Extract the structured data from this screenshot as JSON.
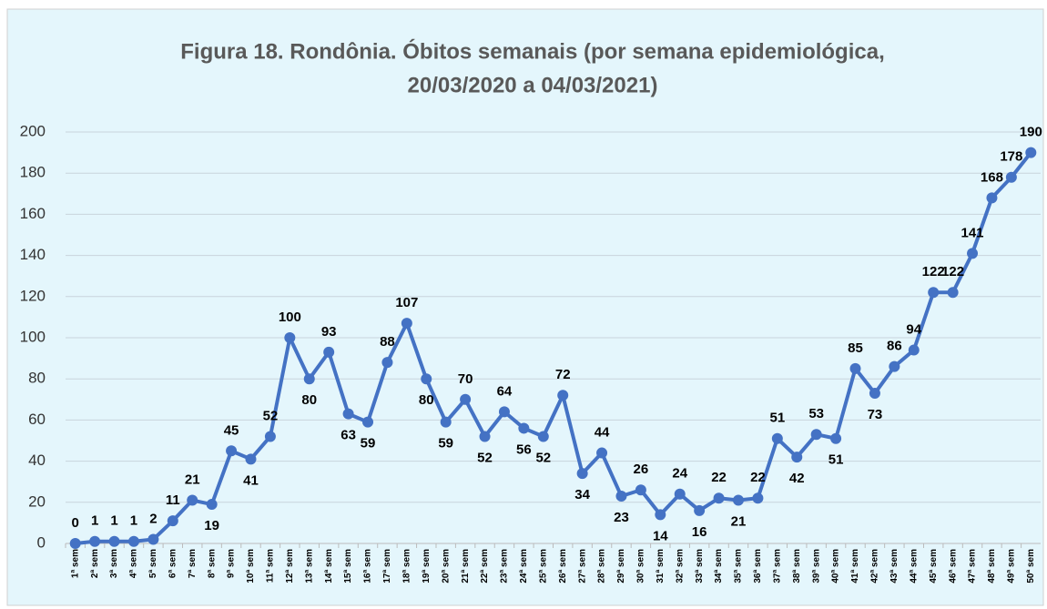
{
  "chart_data": {
    "type": "line",
    "title": [
      "Figura 18.  Rondônia. Óbitos semanais (por semana epidemiológica,",
      "20/03/2020 a 04/03/2021)"
    ],
    "categories": [
      "1ª sem",
      "2ª sem",
      "3ª sem",
      "4ª sem",
      "5ª sem",
      "6ª sem",
      "7ª sem",
      "8ª sem",
      "9ª sem",
      "10ª sem",
      "11ª sem",
      "12ª sem",
      "13ª sem",
      "14ª sem",
      "15ª sem",
      "16ª sem",
      "17ª sem",
      "18ª sem",
      "19ª sem",
      "20ª sem",
      "21ª sem",
      "22ª sem",
      "23ª sem",
      "24ª sem",
      "25ª sem",
      "26ª sem",
      "27ª sem",
      "28ª sem",
      "29ª sem",
      "30ª sem",
      "31ª sem",
      "32ª sem",
      "33ª sem",
      "34ª sem",
      "35ª sem",
      "36ª sem",
      "37ª sem",
      "38ª sem",
      "39ª sem",
      "40ª sem",
      "41ª sem",
      "42ª sem",
      "43ª sem",
      "44ª sem",
      "45ª sem",
      "46ª sem",
      "47ª sem",
      "48ª sem",
      "49ª sem",
      "50ª sem"
    ],
    "values": [
      0,
      1,
      1,
      1,
      2,
      11,
      21,
      19,
      45,
      41,
      52,
      100,
      80,
      93,
      63,
      59,
      88,
      107,
      80,
      59,
      70,
      52,
      64,
      56,
      52,
      72,
      34,
      44,
      23,
      26,
      14,
      24,
      16,
      22,
      21,
      22,
      51,
      42,
      53,
      51,
      85,
      73,
      86,
      94,
      122,
      122,
      141,
      168,
      178,
      190
    ],
    "color": "#4472c4",
    "ylim": [
      0,
      200
    ],
    "yticks": [
      0,
      20,
      40,
      60,
      80,
      100,
      120,
      140,
      160,
      180,
      200
    ],
    "grid": true
  }
}
